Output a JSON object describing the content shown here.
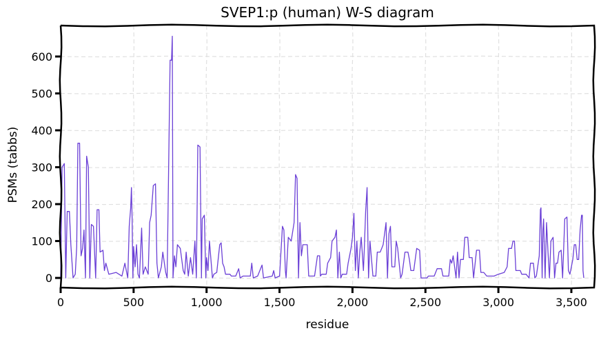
{
  "chart_data": {
    "type": "line",
    "title": "SVEP1:p (human) W-S diagram",
    "xlabel": "residue",
    "ylabel": "PSMs (tabbs)",
    "xlim": [
      0,
      3656
    ],
    "ylim": [
      -26,
      684
    ],
    "grid": true,
    "line_color": "#6a3fd6",
    "xticks": [
      0,
      500,
      1000,
      1500,
      2000,
      2500,
      3000,
      3500
    ],
    "xtick_labels": [
      "0",
      "500",
      "1,000",
      "1,500",
      "2,000",
      "2,500",
      "3,000",
      "3,500"
    ],
    "yticks": [
      0,
      100,
      200,
      300,
      400,
      500,
      600
    ],
    "ytick_labels": [
      "0",
      "100",
      "200",
      "300",
      "400",
      "500",
      "600"
    ],
    "points": [
      [
        0,
        0
      ],
      [
        10,
        300
      ],
      [
        25,
        310
      ],
      [
        35,
        0
      ],
      [
        45,
        180
      ],
      [
        60,
        180
      ],
      [
        70,
        90
      ],
      [
        85,
        0
      ],
      [
        100,
        10
      ],
      [
        110,
        85
      ],
      [
        118,
        365
      ],
      [
        130,
        365
      ],
      [
        140,
        60
      ],
      [
        150,
        80
      ],
      [
        160,
        130
      ],
      [
        170,
        0
      ],
      [
        178,
        330
      ],
      [
        190,
        300
      ],
      [
        200,
        0
      ],
      [
        210,
        145
      ],
      [
        225,
        140
      ],
      [
        240,
        0
      ],
      [
        250,
        185
      ],
      [
        262,
        185
      ],
      [
        270,
        70
      ],
      [
        290,
        75
      ],
      [
        300,
        20
      ],
      [
        310,
        40
      ],
      [
        330,
        10
      ],
      [
        380,
        15
      ],
      [
        420,
        5
      ],
      [
        440,
        40
      ],
      [
        455,
        10
      ],
      [
        460,
        0
      ],
      [
        470,
        140
      ],
      [
        480,
        190
      ],
      [
        485,
        245
      ],
      [
        490,
        160
      ],
      [
        495,
        0
      ],
      [
        500,
        85
      ],
      [
        510,
        30
      ],
      [
        520,
        90
      ],
      [
        530,
        10
      ],
      [
        540,
        0
      ],
      [
        555,
        135
      ],
      [
        565,
        10
      ],
      [
        580,
        30
      ],
      [
        600,
        10
      ],
      [
        610,
        150
      ],
      [
        620,
        170
      ],
      [
        635,
        250
      ],
      [
        650,
        255
      ],
      [
        660,
        40
      ],
      [
        670,
        0
      ],
      [
        690,
        30
      ],
      [
        700,
        70
      ],
      [
        720,
        15
      ],
      [
        730,
        0
      ],
      [
        750,
        590
      ],
      [
        760,
        590
      ],
      [
        765,
        655
      ],
      [
        770,
        0
      ],
      [
        780,
        60
      ],
      [
        790,
        30
      ],
      [
        800,
        90
      ],
      [
        820,
        80
      ],
      [
        840,
        20
      ],
      [
        850,
        10
      ],
      [
        860,
        70
      ],
      [
        875,
        5
      ],
      [
        890,
        55
      ],
      [
        905,
        10
      ],
      [
        920,
        100
      ],
      [
        930,
        0
      ],
      [
        940,
        360
      ],
      [
        955,
        355
      ],
      [
        965,
        0
      ],
      [
        970,
        160
      ],
      [
        985,
        170
      ],
      [
        995,
        0
      ],
      [
        1000,
        55
      ],
      [
        1010,
        20
      ],
      [
        1020,
        100
      ],
      [
        1040,
        0
      ],
      [
        1050,
        10
      ],
      [
        1070,
        15
      ],
      [
        1090,
        90
      ],
      [
        1100,
        95
      ],
      [
        1110,
        40
      ],
      [
        1120,
        30
      ],
      [
        1130,
        10
      ],
      [
        1160,
        10
      ],
      [
        1170,
        5
      ],
      [
        1200,
        5
      ],
      [
        1220,
        25
      ],
      [
        1230,
        0
      ],
      [
        1250,
        5
      ],
      [
        1300,
        5
      ],
      [
        1310,
        40
      ],
      [
        1320,
        0
      ],
      [
        1350,
        5
      ],
      [
        1380,
        35
      ],
      [
        1390,
        0
      ],
      [
        1450,
        5
      ],
      [
        1460,
        20
      ],
      [
        1470,
        0
      ],
      [
        1500,
        5
      ],
      [
        1520,
        140
      ],
      [
        1530,
        130
      ],
      [
        1540,
        20
      ],
      [
        1545,
        0
      ],
      [
        1560,
        110
      ],
      [
        1580,
        100
      ],
      [
        1600,
        150
      ],
      [
        1610,
        280
      ],
      [
        1620,
        270
      ],
      [
        1630,
        0
      ],
      [
        1640,
        150
      ],
      [
        1650,
        60
      ],
      [
        1660,
        90
      ],
      [
        1690,
        90
      ],
      [
        1700,
        5
      ],
      [
        1740,
        5
      ],
      [
        1760,
        60
      ],
      [
        1775,
        60
      ],
      [
        1780,
        5
      ],
      [
        1790,
        10
      ],
      [
        1820,
        10
      ],
      [
        1830,
        40
      ],
      [
        1850,
        55
      ],
      [
        1860,
        100
      ],
      [
        1880,
        110
      ],
      [
        1890,
        130
      ],
      [
        1900,
        0
      ],
      [
        1910,
        70
      ],
      [
        1920,
        0
      ],
      [
        1930,
        10
      ],
      [
        1960,
        10
      ],
      [
        1970,
        40
      ],
      [
        1990,
        80
      ],
      [
        2000,
        110
      ],
      [
        2010,
        175
      ],
      [
        2020,
        20
      ],
      [
        2030,
        100
      ],
      [
        2040,
        0
      ],
      [
        2050,
        70
      ],
      [
        2060,
        110
      ],
      [
        2075,
        20
      ],
      [
        2080,
        70
      ],
      [
        2090,
        180
      ],
      [
        2100,
        245
      ],
      [
        2110,
        0
      ],
      [
        2120,
        100
      ],
      [
        2140,
        5
      ],
      [
        2160,
        5
      ],
      [
        2170,
        70
      ],
      [
        2190,
        70
      ],
      [
        2200,
        80
      ],
      [
        2210,
        90
      ],
      [
        2230,
        150
      ],
      [
        2240,
        0
      ],
      [
        2250,
        120
      ],
      [
        2260,
        140
      ],
      [
        2270,
        30
      ],
      [
        2290,
        30
      ],
      [
        2300,
        100
      ],
      [
        2310,
        80
      ],
      [
        2330,
        0
      ],
      [
        2340,
        10
      ],
      [
        2360,
        70
      ],
      [
        2380,
        70
      ],
      [
        2390,
        50
      ],
      [
        2400,
        20
      ],
      [
        2420,
        20
      ],
      [
        2440,
        80
      ],
      [
        2460,
        75
      ],
      [
        2470,
        0
      ],
      [
        2510,
        0
      ],
      [
        2520,
        5
      ],
      [
        2560,
        5
      ],
      [
        2580,
        25
      ],
      [
        2610,
        25
      ],
      [
        2620,
        5
      ],
      [
        2660,
        5
      ],
      [
        2670,
        50
      ],
      [
        2680,
        40
      ],
      [
        2690,
        60
      ],
      [
        2710,
        0
      ],
      [
        2720,
        70
      ],
      [
        2730,
        0
      ],
      [
        2740,
        50
      ],
      [
        2760,
        50
      ],
      [
        2770,
        110
      ],
      [
        2790,
        110
      ],
      [
        2800,
        55
      ],
      [
        2820,
        55
      ],
      [
        2830,
        0
      ],
      [
        2850,
        75
      ],
      [
        2870,
        75
      ],
      [
        2880,
        15
      ],
      [
        2900,
        15
      ],
      [
        2920,
        5
      ],
      [
        2970,
        5
      ],
      [
        3000,
        10
      ],
      [
        3040,
        15
      ],
      [
        3060,
        30
      ],
      [
        3070,
        80
      ],
      [
        3090,
        80
      ],
      [
        3100,
        100
      ],
      [
        3110,
        100
      ],
      [
        3120,
        20
      ],
      [
        3150,
        20
      ],
      [
        3160,
        10
      ],
      [
        3190,
        10
      ],
      [
        3210,
        0
      ],
      [
        3220,
        40
      ],
      [
        3240,
        40
      ],
      [
        3250,
        0
      ],
      [
        3260,
        5
      ],
      [
        3280,
        60
      ],
      [
        3288,
        185
      ],
      [
        3292,
        190
      ],
      [
        3300,
        0
      ],
      [
        3305,
        130
      ],
      [
        3310,
        160
      ],
      [
        3320,
        0
      ],
      [
        3330,
        150
      ],
      [
        3340,
        70
      ],
      [
        3350,
        0
      ],
      [
        3360,
        100
      ],
      [
        3375,
        110
      ],
      [
        3385,
        0
      ],
      [
        3395,
        40
      ],
      [
        3405,
        40
      ],
      [
        3415,
        70
      ],
      [
        3430,
        75
      ],
      [
        3440,
        0
      ],
      [
        3455,
        160
      ],
      [
        3470,
        165
      ],
      [
        3480,
        20
      ],
      [
        3490,
        10
      ],
      [
        3500,
        30
      ],
      [
        3510,
        50
      ],
      [
        3520,
        90
      ],
      [
        3530,
        90
      ],
      [
        3540,
        50
      ],
      [
        3550,
        50
      ],
      [
        3560,
        130
      ],
      [
        3570,
        170
      ],
      [
        3575,
        170
      ],
      [
        3580,
        20
      ],
      [
        3585,
        0
      ]
    ]
  }
}
